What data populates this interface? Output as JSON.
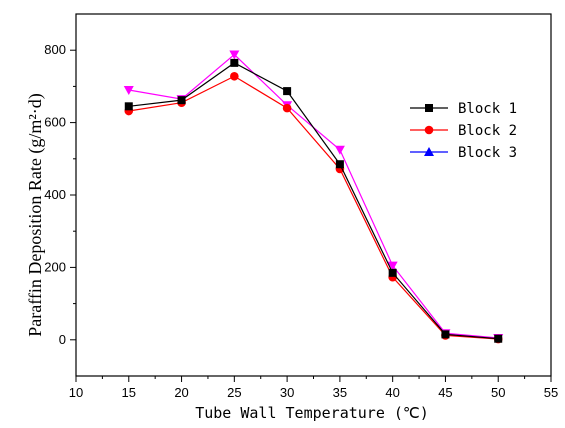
{
  "chart_data": {
    "type": "line",
    "xlabel": "Tube Wall Temperature (℃)",
    "ylabel": "Paraffin Deposition Rate (g/m²·d)",
    "xlim": [
      10,
      55
    ],
    "ylim": [
      -100,
      900
    ],
    "xticks": [
      10,
      15,
      20,
      25,
      30,
      35,
      40,
      45,
      50,
      55
    ],
    "yticks": [
      0,
      200,
      400,
      600,
      800
    ],
    "legend_position": "top-right",
    "grid": false,
    "x": [
      15,
      20,
      25,
      30,
      35,
      40,
      45,
      50
    ],
    "series": [
      {
        "name": "Block 1",
        "color": "#000000",
        "marker": "square",
        "values": [
          645,
          662,
          765,
          687,
          485,
          185,
          15,
          3
        ]
      },
      {
        "name": "Block 2",
        "color": "#ff0000",
        "marker": "circle",
        "values": [
          632,
          655,
          728,
          640,
          472,
          173,
          12,
          2
        ]
      },
      {
        "name": "Block 3",
        "color": "#0000ff",
        "legend_color": "#0000ff",
        "line_color": "#ff00ff",
        "marker": "triangle-down",
        "values": [
          690,
          665,
          788,
          648,
          525,
          205,
          18,
          5
        ]
      }
    ]
  }
}
